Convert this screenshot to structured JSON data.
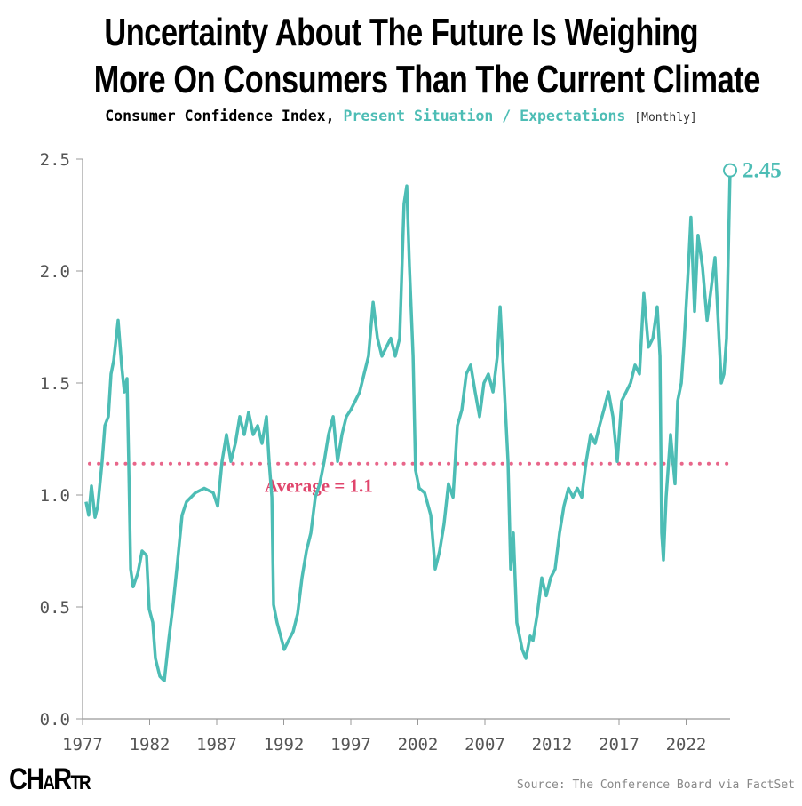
{
  "title_line1": "Uncertainty About The Future Is Weighing",
  "title_line2": "More On Consumers Than The Current Climate",
  "subtitle": {
    "prefix": "Consumer Confidence Index, ",
    "highlight": "Present Situation / Expectations",
    "frequency": "[Monthly]"
  },
  "source": "Source: The Conference Board via FactSet",
  "logo_text": "CHARTR",
  "colors": {
    "line": "#4dbdb5",
    "average": "#e8668a",
    "average_label": "#e0456c",
    "axis": "#999999"
  },
  "chart_data": {
    "type": "line",
    "title": "Consumer Confidence Index, Present Situation / Expectations",
    "xlabel": "",
    "ylabel": "",
    "xlim": [
      1977,
      2025.3
    ],
    "ylim": [
      0,
      2.5
    ],
    "x_ticks": [
      "1977",
      "1982",
      "1987",
      "1992",
      "1997",
      "2002",
      "2007",
      "2012",
      "2017",
      "2022"
    ],
    "y_ticks": [
      "0.0",
      "0.5",
      "1.0",
      "1.5",
      "2.0",
      "2.5"
    ],
    "grid": false,
    "average": 1.14,
    "average_label": "Average = 1.1",
    "last_value_label": "2.45",
    "series": [
      {
        "name": "Present Situation / Expectations",
        "x": [
          1977.26,
          1977.46,
          1977.66,
          1977.93,
          1978.13,
          1978.46,
          1978.66,
          1978.92,
          1979.12,
          1979.32,
          1979.65,
          1979.91,
          1980.11,
          1980.31,
          1980.44,
          1980.58,
          1980.77,
          1981.11,
          1981.44,
          1981.77,
          1981.97,
          1982.23,
          1982.43,
          1982.76,
          1983.09,
          1983.42,
          1983.75,
          1984.09,
          1984.42,
          1984.75,
          1985.41,
          1986.07,
          1986.74,
          1987.07,
          1987.4,
          1987.73,
          1988.06,
          1988.39,
          1988.72,
          1989.05,
          1989.38,
          1989.72,
          1990.05,
          1990.38,
          1990.71,
          1990.91,
          1991.11,
          1991.24,
          1991.5,
          1992.03,
          1992.36,
          1992.7,
          1993.03,
          1993.36,
          1993.69,
          1994.02,
          1994.35,
          1994.68,
          1995.01,
          1995.34,
          1995.68,
          1996.01,
          1996.34,
          1996.67,
          1997.0,
          1997.33,
          1997.66,
          1997.99,
          1998.32,
          1998.66,
          1998.99,
          1999.32,
          1999.65,
          1999.98,
          2000.31,
          2000.64,
          2000.97,
          2001.17,
          2001.37,
          2001.64,
          2001.83,
          2002.1,
          2002.5,
          2002.96,
          2003.29,
          2003.62,
          2003.95,
          2004.28,
          2004.62,
          2004.95,
          2005.28,
          2005.61,
          2005.94,
          2006.27,
          2006.6,
          2006.93,
          2007.26,
          2007.6,
          2007.93,
          2008.13,
          2008.39,
          2008.72,
          2008.92,
          2009.12,
          2009.38,
          2009.78,
          2010.05,
          2010.38,
          2010.58,
          2010.91,
          2011.24,
          2011.57,
          2011.9,
          2012.23,
          2012.56,
          2012.89,
          2013.23,
          2013.56,
          2013.89,
          2014.22,
          2014.55,
          2014.88,
          2015.21,
          2015.54,
          2015.87,
          2016.21,
          2016.54,
          2016.87,
          2017.2,
          2017.53,
          2017.86,
          2018.19,
          2018.52,
          2018.85,
          2019.19,
          2019.52,
          2019.85,
          2020.05,
          2020.18,
          2020.31,
          2020.51,
          2020.84,
          2021.17,
          2021.37,
          2021.64,
          2021.83,
          2022.17,
          2022.36,
          2022.63,
          2022.89,
          2023.22,
          2023.56,
          2023.82,
          2024.15,
          2024.35,
          2024.62,
          2024.82,
          2025.01,
          2025.28
        ],
        "y": [
          0.97,
          0.91,
          1.04,
          0.9,
          0.95,
          1.15,
          1.31,
          1.35,
          1.54,
          1.6,
          1.78,
          1.58,
          1.46,
          1.52,
          1.15,
          0.67,
          0.59,
          0.65,
          0.75,
          0.73,
          0.49,
          0.43,
          0.27,
          0.19,
          0.17,
          0.35,
          0.51,
          0.71,
          0.91,
          0.97,
          1.01,
          1.03,
          1.01,
          0.95,
          1.15,
          1.27,
          1.15,
          1.23,
          1.35,
          1.27,
          1.37,
          1.27,
          1.31,
          1.23,
          1.35,
          1.15,
          0.99,
          0.51,
          0.43,
          0.31,
          0.35,
          0.39,
          0.47,
          0.63,
          0.75,
          0.83,
          0.99,
          1.05,
          1.15,
          1.27,
          1.35,
          1.15,
          1.27,
          1.35,
          1.38,
          1.42,
          1.46,
          1.54,
          1.62,
          1.86,
          1.7,
          1.62,
          1.66,
          1.7,
          1.62,
          1.7,
          2.3,
          2.38,
          2.02,
          1.62,
          1.11,
          1.03,
          1.01,
          0.91,
          0.67,
          0.75,
          0.87,
          1.05,
          0.99,
          1.31,
          1.38,
          1.54,
          1.58,
          1.46,
          1.35,
          1.5,
          1.54,
          1.46,
          1.62,
          1.84,
          1.54,
          1.15,
          0.67,
          0.83,
          0.43,
          0.31,
          0.27,
          0.37,
          0.35,
          0.47,
          0.63,
          0.55,
          0.63,
          0.67,
          0.83,
          0.95,
          1.03,
          0.99,
          1.03,
          0.99,
          1.15,
          1.27,
          1.23,
          1.31,
          1.38,
          1.46,
          1.35,
          1.15,
          1.42,
          1.46,
          1.5,
          1.58,
          1.54,
          1.9,
          1.66,
          1.7,
          1.84,
          1.62,
          0.83,
          0.71,
          0.99,
          1.27,
          1.05,
          1.42,
          1.5,
          1.66,
          2.02,
          2.24,
          1.82,
          2.16,
          2.02,
          1.78,
          1.9,
          2.06,
          1.82,
          1.5,
          1.54,
          1.7,
          2.45
        ]
      }
    ]
  }
}
